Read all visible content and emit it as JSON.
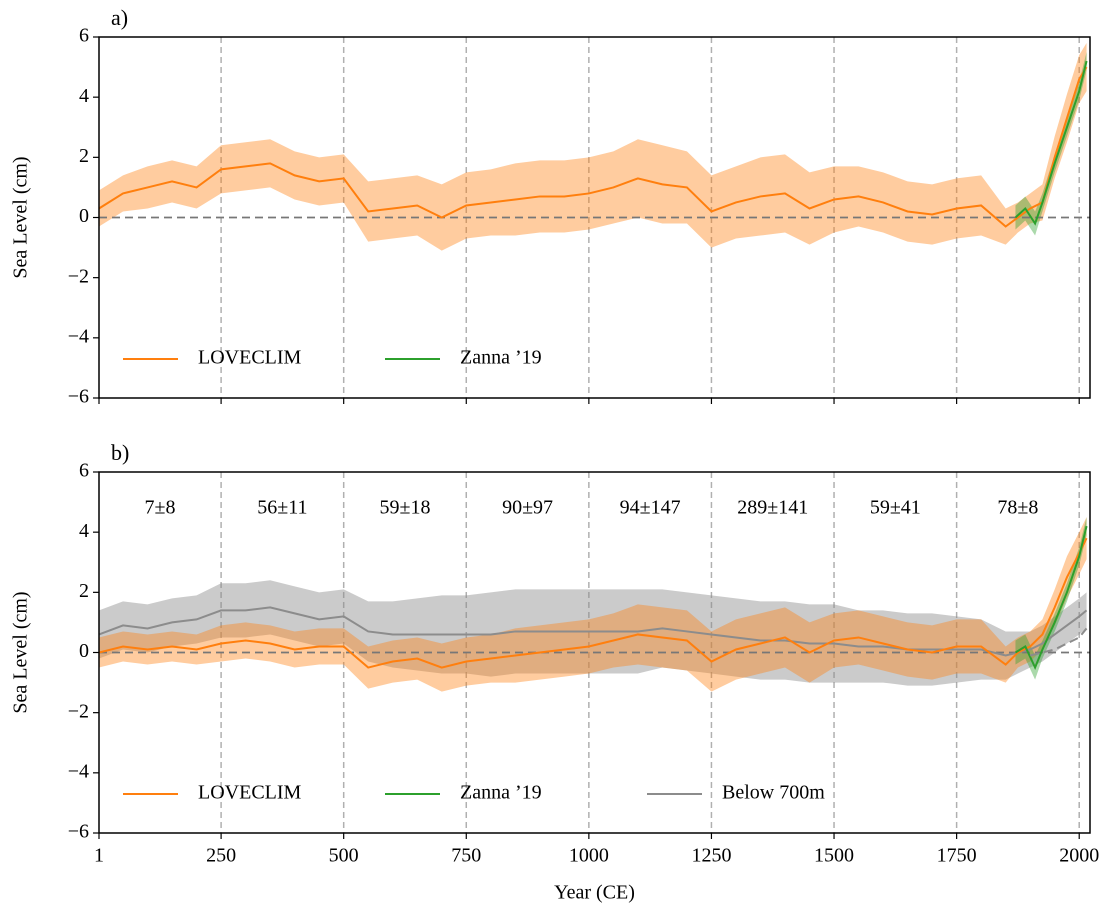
{
  "chart_data": [
    {
      "type": "line",
      "panel_label": "a)",
      "ylabel": "Sea Level (cm)",
      "xlim": [
        1,
        2022
      ],
      "ylim": [
        -6,
        6
      ],
      "xticks": [
        1,
        250,
        500,
        750,
        1000,
        1250,
        1500,
        1750,
        2000
      ],
      "yticks": [
        {
          "value": -6,
          "label": "−6"
        },
        {
          "value": -4,
          "label": "−4"
        },
        {
          "value": -2,
          "label": "−2"
        },
        0,
        2,
        4,
        6
      ],
      "vlines": true,
      "zero_line": true,
      "legend": "lower left",
      "series": [
        {
          "name": "LOVECLIM",
          "color": "#ff7f0e",
          "x": [
            1,
            50,
            100,
            150,
            200,
            250,
            300,
            350,
            400,
            450,
            500,
            550,
            600,
            650,
            700,
            750,
            800,
            850,
            900,
            950,
            1000,
            1050,
            1100,
            1150,
            1200,
            1250,
            1300,
            1350,
            1400,
            1450,
            1500,
            1550,
            1600,
            1650,
            1700,
            1750,
            1800,
            1850,
            1875,
            1900,
            1925,
            1950,
            1975,
            2000,
            2015
          ],
          "values": [
            0.3,
            0.8,
            1.0,
            1.2,
            1.0,
            1.6,
            1.7,
            1.8,
            1.4,
            1.2,
            1.3,
            0.2,
            0.3,
            0.4,
            0.0,
            0.4,
            0.5,
            0.6,
            0.7,
            0.7,
            0.8,
            1.0,
            1.3,
            1.1,
            1.0,
            0.2,
            0.5,
            0.7,
            0.8,
            0.3,
            0.6,
            0.7,
            0.5,
            0.2,
            0.1,
            0.3,
            0.4,
            -0.3,
            0.0,
            0.3,
            0.5,
            2.0,
            3.3,
            4.6,
            5.0
          ],
          "error": [
            0.6,
            0.6,
            0.7,
            0.7,
            0.7,
            0.8,
            0.8,
            0.8,
            0.8,
            0.8,
            0.8,
            1.0,
            1.0,
            1.0,
            1.1,
            1.1,
            1.1,
            1.2,
            1.2,
            1.2,
            1.2,
            1.2,
            1.3,
            1.3,
            1.2,
            1.2,
            1.2,
            1.3,
            1.3,
            1.2,
            1.1,
            1.0,
            1.0,
            1.0,
            1.0,
            1.0,
            1.0,
            0.6,
            0.5,
            0.5,
            0.6,
            0.7,
            0.8,
            0.8,
            0.8
          ]
        },
        {
          "name": "Zanna ’19",
          "color": "#2ca02c",
          "x": [
            1870,
            1890,
            1910,
            1925,
            1950,
            1975,
            2000,
            2015
          ],
          "values": [
            0.0,
            0.3,
            -0.2,
            0.5,
            1.8,
            3.0,
            4.2,
            5.2
          ],
          "error": [
            0.4,
            0.4,
            0.4,
            0.3,
            0.3,
            0.3,
            0.3,
            0.3
          ]
        }
      ]
    },
    {
      "type": "line",
      "panel_label": "b)",
      "ylabel": "Sea Level (cm)",
      "xlabel": "Year (CE)",
      "xlim": [
        1,
        2022
      ],
      "ylim": [
        -6,
        6
      ],
      "xticks": [
        1,
        250,
        500,
        750,
        1000,
        1250,
        1500,
        1750,
        2000
      ],
      "yticks": [
        {
          "value": -6,
          "label": "−6"
        },
        {
          "value": -4,
          "label": "−4"
        },
        {
          "value": -2,
          "label": "−2"
        },
        0,
        2,
        4,
        6
      ],
      "vlines": true,
      "zero_line": true,
      "legend": "lower left",
      "interval_labels": [
        "7±8",
        "56±11",
        "59±18",
        "90±97",
        "94±147",
        "289±141",
        "59±41",
        "78±8"
      ],
      "series": [
        {
          "name": "Below 700m",
          "color": "#8c8c8c",
          "x": [
            1,
            50,
            100,
            150,
            200,
            250,
            300,
            350,
            400,
            450,
            500,
            550,
            600,
            650,
            700,
            750,
            800,
            850,
            900,
            950,
            1000,
            1050,
            1100,
            1150,
            1200,
            1250,
            1300,
            1350,
            1400,
            1450,
            1500,
            1550,
            1600,
            1650,
            1700,
            1750,
            1800,
            1850,
            1875,
            1900,
            1925,
            1950,
            1975,
            2000,
            2015
          ],
          "values": [
            0.6,
            0.9,
            0.8,
            1.0,
            1.1,
            1.4,
            1.4,
            1.5,
            1.3,
            1.1,
            1.2,
            0.7,
            0.6,
            0.6,
            0.6,
            0.6,
            0.6,
            0.7,
            0.7,
            0.7,
            0.7,
            0.7,
            0.7,
            0.8,
            0.7,
            0.6,
            0.5,
            0.4,
            0.4,
            0.3,
            0.3,
            0.2,
            0.2,
            0.1,
            0.1,
            0.1,
            0.1,
            -0.1,
            0.0,
            0.1,
            0.3,
            0.6,
            0.9,
            1.2,
            1.4
          ],
          "error": [
            0.8,
            0.8,
            0.8,
            0.8,
            0.8,
            0.9,
            0.9,
            0.9,
            0.9,
            0.9,
            0.9,
            1.0,
            1.1,
            1.2,
            1.3,
            1.3,
            1.4,
            1.4,
            1.4,
            1.4,
            1.4,
            1.4,
            1.4,
            1.3,
            1.3,
            1.3,
            1.3,
            1.3,
            1.3,
            1.3,
            1.3,
            1.2,
            1.2,
            1.2,
            1.2,
            1.1,
            1.0,
            0.8,
            0.7,
            0.6,
            0.6,
            0.6,
            0.6,
            0.6,
            0.6
          ]
        },
        {
          "name": "LOVECLIM",
          "color": "#ff7f0e",
          "x": [
            1,
            50,
            100,
            150,
            200,
            250,
            300,
            350,
            400,
            450,
            500,
            550,
            600,
            650,
            700,
            750,
            800,
            850,
            900,
            950,
            1000,
            1050,
            1100,
            1150,
            1200,
            1250,
            1300,
            1350,
            1400,
            1450,
            1500,
            1550,
            1600,
            1650,
            1700,
            1750,
            1800,
            1850,
            1875,
            1900,
            1925,
            1950,
            1975,
            2000,
            2015
          ],
          "values": [
            0.0,
            0.2,
            0.1,
            0.2,
            0.1,
            0.3,
            0.4,
            0.3,
            0.1,
            0.2,
            0.2,
            -0.5,
            -0.3,
            -0.2,
            -0.5,
            -0.3,
            -0.2,
            -0.1,
            0.0,
            0.1,
            0.2,
            0.4,
            0.6,
            0.5,
            0.4,
            -0.3,
            0.1,
            0.3,
            0.5,
            0.0,
            0.4,
            0.5,
            0.3,
            0.1,
            0.0,
            0.2,
            0.2,
            -0.4,
            0.0,
            0.2,
            0.6,
            1.5,
            2.5,
            3.3,
            3.8
          ],
          "error": [
            0.5,
            0.5,
            0.5,
            0.5,
            0.5,
            0.6,
            0.6,
            0.6,
            0.6,
            0.6,
            0.6,
            0.7,
            0.7,
            0.7,
            0.8,
            0.8,
            0.8,
            0.9,
            0.9,
            0.9,
            0.9,
            0.9,
            1.0,
            1.0,
            1.0,
            1.0,
            1.0,
            1.0,
            1.0,
            1.0,
            0.9,
            0.9,
            0.9,
            0.9,
            0.9,
            0.9,
            0.9,
            0.6,
            0.5,
            0.5,
            0.5,
            0.6,
            0.7,
            0.7,
            0.7
          ]
        },
        {
          "name": "Zanna ’19",
          "color": "#2ca02c",
          "x": [
            1870,
            1890,
            1910,
            1925,
            1950,
            1975,
            2000,
            2015
          ],
          "values": [
            0.0,
            0.2,
            -0.5,
            0.1,
            1.0,
            2.0,
            3.2,
            4.2
          ],
          "error": [
            0.4,
            0.4,
            0.4,
            0.3,
            0.3,
            0.3,
            0.3,
            0.3
          ]
        },
        {
          "color": "#8c8c8c",
          "dashed": true,
          "x": [
            1900,
            1950,
            1975,
            2000,
            2015
          ],
          "values": [
            -0.1,
            0.1,
            0.3,
            0.5,
            0.8
          ]
        }
      ]
    }
  ]
}
